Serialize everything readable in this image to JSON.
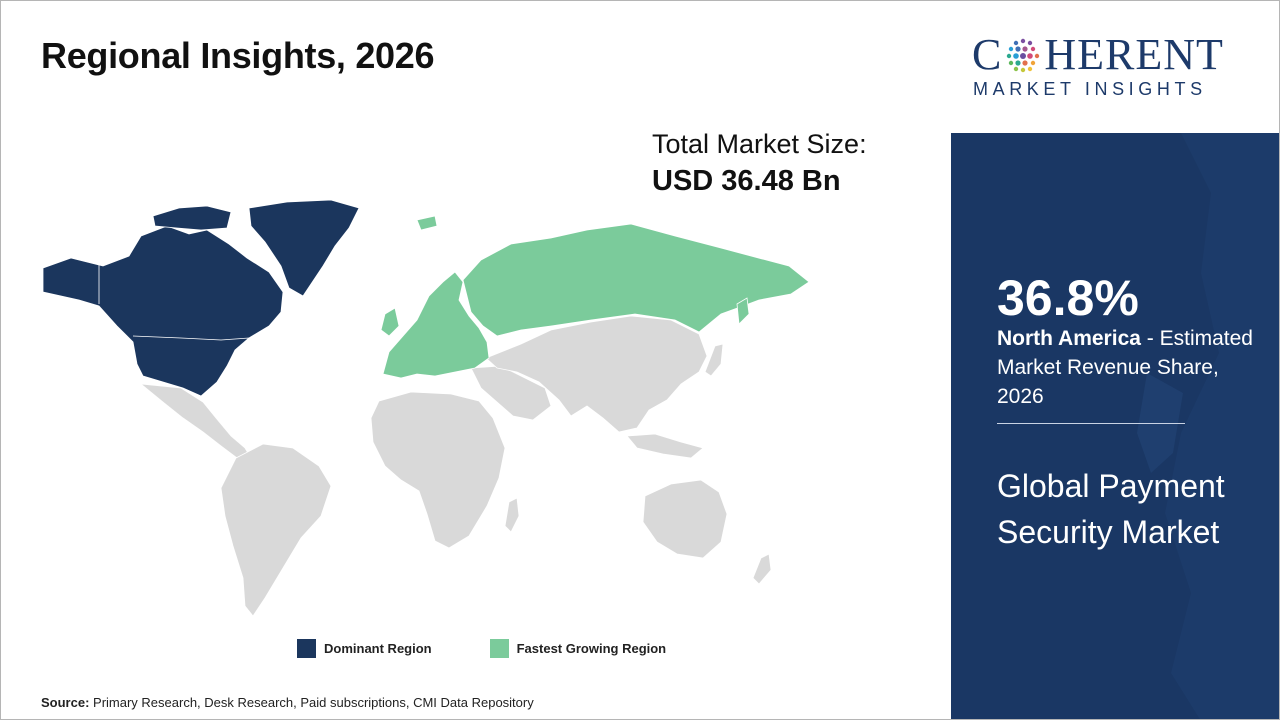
{
  "title": "Regional Insights, 2026",
  "total_market": {
    "label": "Total Market Size:",
    "value": "USD 36.48 Bn"
  },
  "map": {
    "regions": [
      {
        "name": "North America",
        "role": "dominant"
      },
      {
        "name": "Europe",
        "role": "fastest-growing"
      },
      {
        "name": "Russia",
        "role": "fastest-growing"
      },
      {
        "name": "Latin America",
        "role": "neutral"
      },
      {
        "name": "Africa",
        "role": "neutral"
      },
      {
        "name": "Middle East",
        "role": "neutral"
      },
      {
        "name": "Asia Pacific",
        "role": "neutral"
      }
    ],
    "colors": {
      "dominant": "#1b365d",
      "fastest": "#7bcb9b",
      "neutral": "#d9d9d9",
      "border": "#ffffff"
    }
  },
  "legend": {
    "dominant": "Dominant Region",
    "fastest": "Fastest Growing Region"
  },
  "source": {
    "label": "Source:",
    "text": " Primary Research, Desk Research, Paid subscriptions, CMI Data Repository"
  },
  "logo": {
    "line1_pre": "C",
    "line1_post": "HERENT",
    "line2": "MARKET INSIGHTS"
  },
  "panel": {
    "stat_value": "36.8%",
    "stat_region": "North America",
    "stat_text": " - Estimated Market Revenue Share, 2026",
    "market_name": "Global Payment Security Market",
    "bg_color": "#1a3764"
  }
}
